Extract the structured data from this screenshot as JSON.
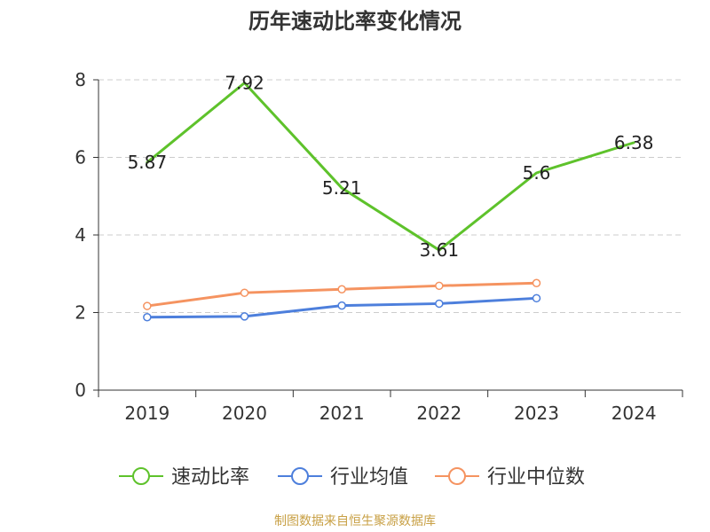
{
  "chart_data": {
    "type": "line",
    "title": "历年速动比率变化情况",
    "categories": [
      "2019",
      "2020",
      "2021",
      "2022",
      "2023",
      "2024"
    ],
    "ylim": [
      0,
      8
    ],
    "yticks": [
      0,
      2,
      4,
      6,
      8
    ],
    "grid": true,
    "legend_position": "bottom",
    "series": [
      {
        "name": "速动比率",
        "color": "#5ec22b",
        "values": [
          5.87,
          7.92,
          5.21,
          3.61,
          5.6,
          6.38
        ],
        "labels": [
          "5.87",
          "7.92",
          "5.21",
          "3.61",
          "5.6",
          "6.38"
        ],
        "show_labels": true,
        "show_markers": false
      },
      {
        "name": "行业均值",
        "color": "#4d7fdc",
        "values": [
          1.88,
          1.9,
          2.18,
          2.23,
          2.37,
          null
        ],
        "show_labels": false,
        "show_markers": true
      },
      {
        "name": "行业中位数",
        "color": "#f59360",
        "values": [
          2.17,
          2.51,
          2.6,
          2.69,
          2.76,
          null
        ],
        "show_labels": false,
        "show_markers": true
      }
    ]
  },
  "source_note": "制图数据来自恒生聚源数据库"
}
